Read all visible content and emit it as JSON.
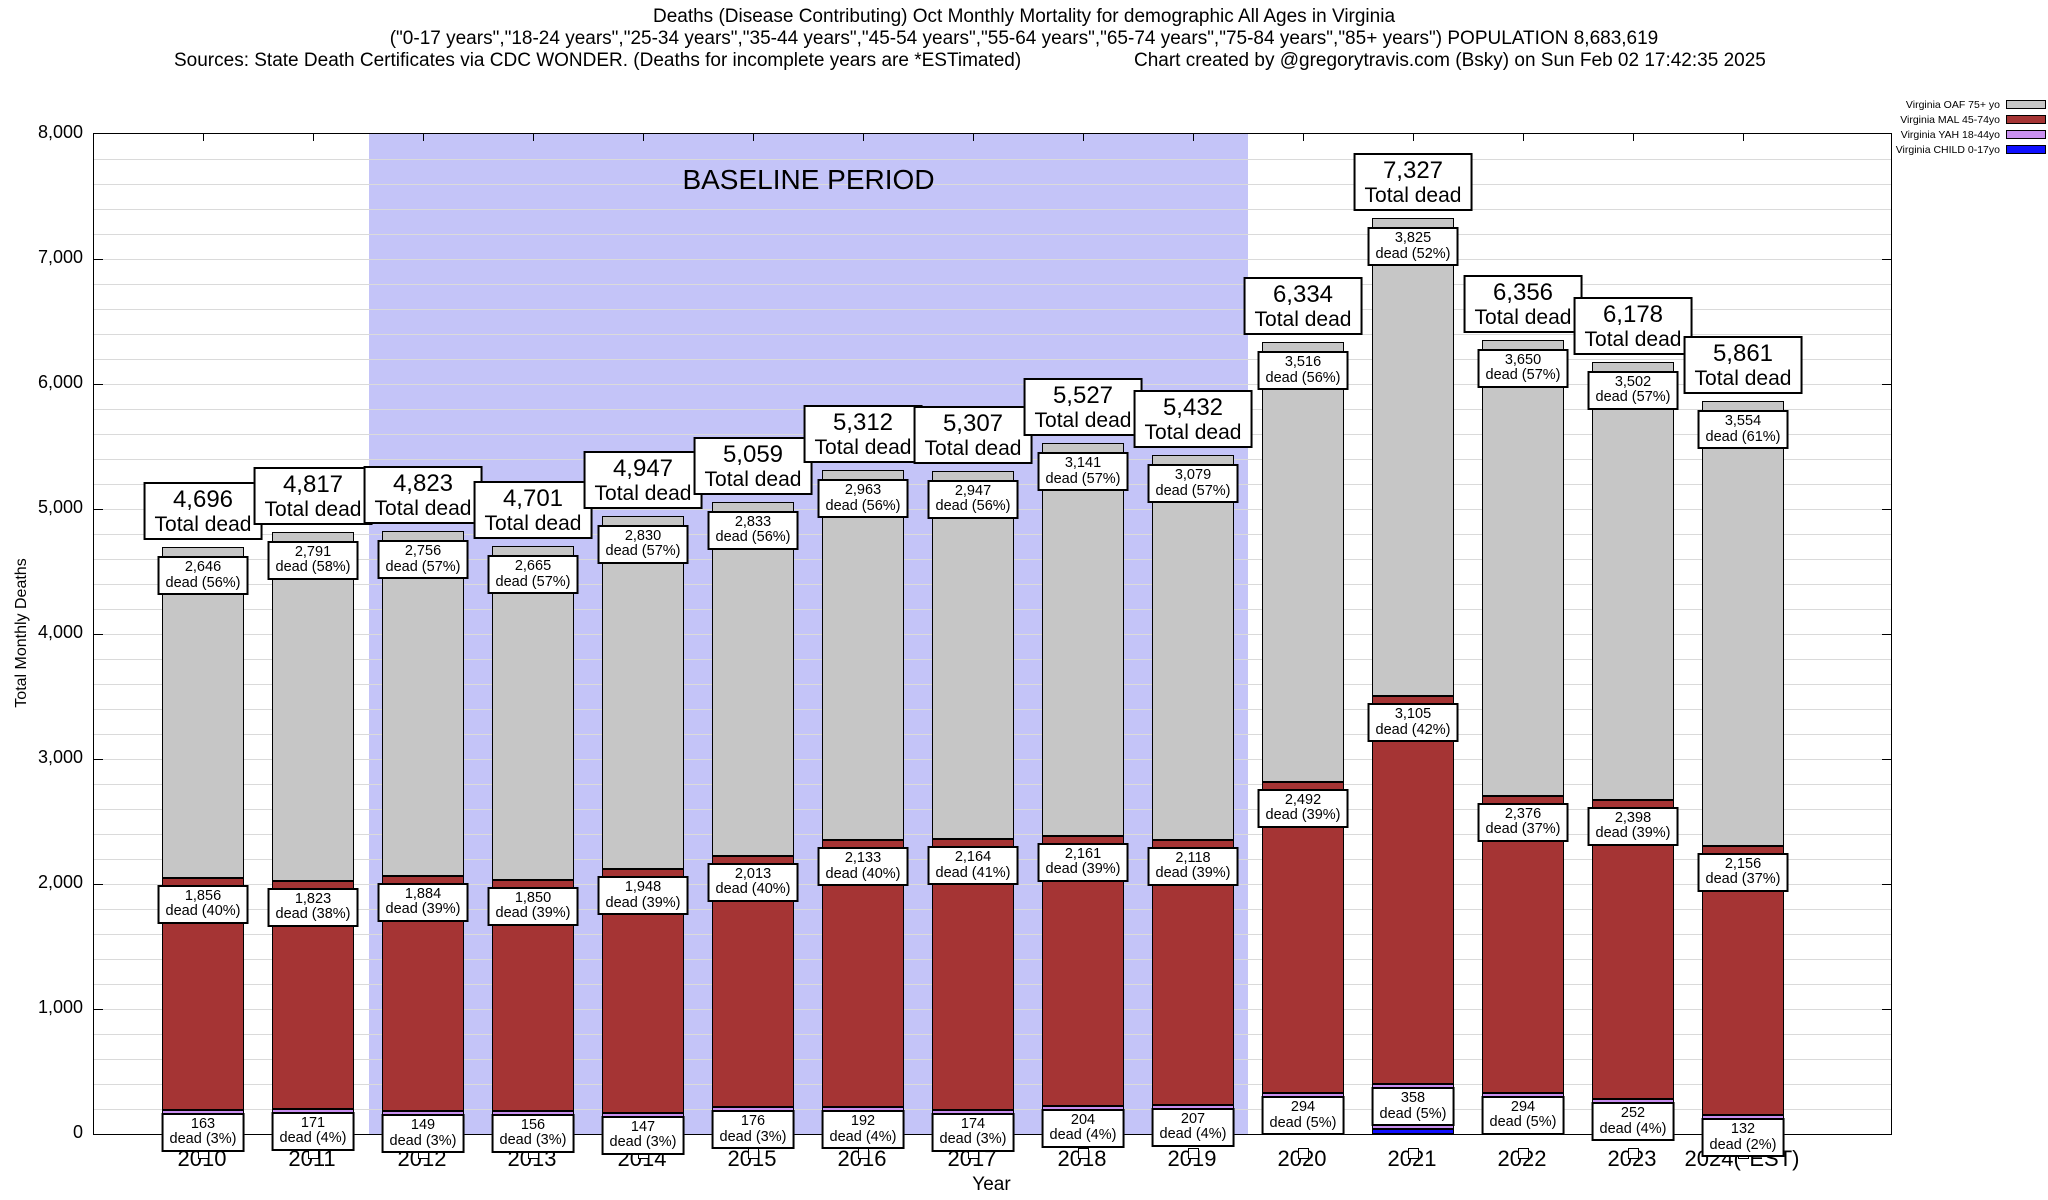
{
  "header": {
    "title_line1": "Deaths (Disease Contributing) Oct Monthly Mortality for demographic All Ages in Virginia",
    "title_line2": "(\"0-17 years\",\"18-24 years\",\"25-34 years\",\"35-44 years\",\"45-54 years\",\"55-64 years\",\"65-74 years\",\"75-84 years\",\"85+ years\") POPULATION 8,683,619",
    "sources": "Sources: State Death Certificates via CDC WONDER. (Deaths for incomplete years are *ESTimated)",
    "credit": "Chart created by @gregorytravis.com (Bsky) on Sun Feb 02 17:42:35 2025"
  },
  "labels": {
    "total_suffix": "Total dead",
    "dead_word": "dead"
  },
  "chart_data": {
    "type": "bar",
    "stacked": true,
    "title": "Deaths (Disease Contributing) Oct Monthly Mortality for demographic All Ages in Virginia",
    "xlabel": "Year",
    "ylabel": "Total Monthly Deaths",
    "ylim": [
      0,
      8000
    ],
    "ytick_labels": [
      "0",
      "1,000",
      "2,000",
      "3,000",
      "4,000",
      "5,000",
      "6,000",
      "7,000",
      "8,000"
    ],
    "minor_grid_interval": 200,
    "grid": true,
    "legend_position": "top-right-outside",
    "baseline_band": {
      "label": "BASELINE PERIOD",
      "from_year": "2012",
      "to_year": "2019",
      "color": "#c4c4f8"
    },
    "colors": {
      "oaf": "#c6c6c6",
      "mal": "#a53434",
      "yah": "#c98ff0",
      "child": "#0f0fff",
      "grid": "#dadada",
      "band": "#c4c4f8"
    },
    "legend": [
      {
        "label": "Virginia OAF 75+ yo",
        "series": "oaf"
      },
      {
        "label": "Virginia MAL 45-74yo",
        "series": "mal"
      },
      {
        "label": "Virginia YAH 18-44yo",
        "series": "yah"
      },
      {
        "label": "Virginia CHILD 0-17yo",
        "series": "child"
      }
    ],
    "categories": [
      "2010",
      "2011",
      "2012",
      "2013",
      "2014",
      "2015",
      "2016",
      "2017",
      "2018",
      "2019",
      "2020",
      "2021",
      "2022",
      "2023",
      "2024(*EST)"
    ],
    "bars": [
      {
        "year": "2010",
        "total": 4696,
        "total_str": "4,696",
        "oaf": 2646,
        "oaf_str": "2,646",
        "oaf_pct": "56%",
        "mal": 1856,
        "mal_str": "1,856",
        "mal_pct": "40%",
        "yah": 163,
        "yah_str": "163",
        "yah_pct": "3%"
      },
      {
        "year": "2011",
        "total": 4817,
        "total_str": "4,817",
        "oaf": 2791,
        "oaf_str": "2,791",
        "oaf_pct": "58%",
        "mal": 1823,
        "mal_str": "1,823",
        "mal_pct": "38%",
        "yah": 171,
        "yah_str": "171",
        "yah_pct": "4%"
      },
      {
        "year": "2012",
        "total": 4823,
        "total_str": "4,823",
        "oaf": 2756,
        "oaf_str": "2,756",
        "oaf_pct": "57%",
        "mal": 1884,
        "mal_str": "1,884",
        "mal_pct": "39%",
        "yah": 149,
        "yah_str": "149",
        "yah_pct": "3%"
      },
      {
        "year": "2013",
        "total": 4701,
        "total_str": "4,701",
        "oaf": 2665,
        "oaf_str": "2,665",
        "oaf_pct": "57%",
        "mal": 1850,
        "mal_str": "1,850",
        "mal_pct": "39%",
        "yah": 156,
        "yah_str": "156",
        "yah_pct": "3%"
      },
      {
        "year": "2014",
        "total": 4947,
        "total_str": "4,947",
        "oaf": 2830,
        "oaf_str": "2,830",
        "oaf_pct": "57%",
        "mal": 1948,
        "mal_str": "1,948",
        "mal_pct": "39%",
        "yah": 147,
        "yah_str": "147",
        "yah_pct": "3%"
      },
      {
        "year": "2015",
        "total": 5059,
        "total_str": "5,059",
        "oaf": 2833,
        "oaf_str": "2,833",
        "oaf_pct": "56%",
        "mal": 2013,
        "mal_str": "2,013",
        "mal_pct": "40%",
        "yah": 176,
        "yah_str": "176",
        "yah_pct": "3%"
      },
      {
        "year": "2016",
        "total": 5312,
        "total_str": "5,312",
        "oaf": 2963,
        "oaf_str": "2,963",
        "oaf_pct": "56%",
        "mal": 2133,
        "mal_str": "2,133",
        "mal_pct": "40%",
        "yah": 192,
        "yah_str": "192",
        "yah_pct": "4%"
      },
      {
        "year": "2017",
        "total": 5307,
        "total_str": "5,307",
        "oaf": 2947,
        "oaf_str": "2,947",
        "oaf_pct": "56%",
        "mal": 2164,
        "mal_str": "2,164",
        "mal_pct": "41%",
        "yah": 174,
        "yah_str": "174",
        "yah_pct": "3%"
      },
      {
        "year": "2018",
        "total": 5527,
        "total_str": "5,527",
        "oaf": 3141,
        "oaf_str": "3,141",
        "oaf_pct": "57%",
        "mal": 2161,
        "mal_str": "2,161",
        "mal_pct": "39%",
        "yah": 204,
        "yah_str": "204",
        "yah_pct": "4%"
      },
      {
        "year": "2019",
        "total": 5432,
        "total_str": "5,432",
        "oaf": 3079,
        "oaf_str": "3,079",
        "oaf_pct": "57%",
        "mal": 2118,
        "mal_str": "2,118",
        "mal_pct": "39%",
        "yah": 207,
        "yah_str": "207",
        "yah_pct": "4%"
      },
      {
        "year": "2020",
        "total": 6334,
        "total_str": "6,334",
        "oaf": 3516,
        "oaf_str": "3,516",
        "oaf_pct": "56%",
        "mal": 2492,
        "mal_str": "2,492",
        "mal_pct": "39%",
        "yah": 294,
        "yah_str": "294",
        "yah_pct": "5%"
      },
      {
        "year": "2021",
        "total": 7327,
        "total_str": "7,327",
        "oaf": 3825,
        "oaf_str": "3,825",
        "oaf_pct": "52%",
        "mal": 3105,
        "mal_str": "3,105",
        "mal_pct": "42%",
        "yah": 358,
        "yah_str": "358",
        "yah_pct": "5%"
      },
      {
        "year": "2022",
        "total": 6356,
        "total_str": "6,356",
        "oaf": 3650,
        "oaf_str": "3,650",
        "oaf_pct": "57%",
        "mal": 2376,
        "mal_str": "2,376",
        "mal_pct": "37%",
        "yah": 294,
        "yah_str": "294",
        "yah_pct": "5%"
      },
      {
        "year": "2023",
        "total": 6178,
        "total_str": "6,178",
        "oaf": 3502,
        "oaf_str": "3,502",
        "oaf_pct": "57%",
        "mal": 2398,
        "mal_str": "2,398",
        "mal_pct": "39%",
        "yah": 252,
        "yah_str": "252",
        "yah_pct": "4%"
      },
      {
        "year": "2024(*EST)",
        "total": 5861,
        "total_str": "5,861",
        "oaf": 3554,
        "oaf_str": "3,554",
        "oaf_pct": "61%",
        "mal": 2156,
        "mal_str": "2,156",
        "mal_pct": "37%",
        "yah": 132,
        "yah_str": "132",
        "yah_pct": "2%"
      }
    ]
  }
}
